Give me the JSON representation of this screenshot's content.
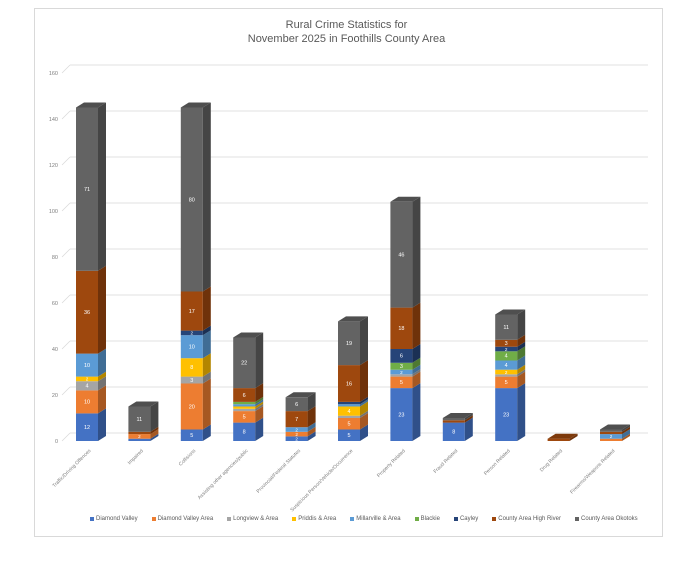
{
  "chart_data": {
    "type": "bar",
    "stacked": true,
    "style": "3d-stacked-column",
    "title": "Rural Crime Statistics for\nNovember 2025 in Foothills County Area",
    "title_lines": [
      "Rural Crime Statistics for",
      "November 2025 in Foothills County Area"
    ],
    "xlabel": "",
    "ylabel": "",
    "ylim": [
      0,
      160
    ],
    "yticks": [
      0,
      20,
      40,
      60,
      80,
      100,
      120,
      140,
      160
    ],
    "grid": true,
    "legend_position": "bottom",
    "categories": [
      "Traffic/Driving Offences",
      "Impaired",
      "Collisions",
      "Assisting other agencies/public",
      "Provincial/Federal Statutes",
      "Suspicious Person/Vehicle/Occurrence",
      "Property Related",
      "Fraud Related",
      "Person Related",
      "Drug Related",
      "Firearms/Weapons Related"
    ],
    "series": [
      {
        "name": "Diamond Valley",
        "color": "#4472C4",
        "values": [
          12,
          1,
          5,
          8,
          2,
          5,
          23,
          8,
          23,
          0,
          0
        ]
      },
      {
        "name": "Diamond Valley Area",
        "color": "#ED7D31",
        "values": [
          10,
          2,
          20,
          5,
          2,
          5,
          5,
          0,
          5,
          0,
          1
        ]
      },
      {
        "name": "Longview & Area",
        "color": "#A5A5A5",
        "values": [
          4,
          0,
          3,
          1,
          0,
          1,
          1,
          0,
          1,
          0,
          0
        ]
      },
      {
        "name": "Priddis & Area",
        "color": "#FFC000",
        "values": [
          2,
          0,
          8,
          1,
          0,
          4,
          0,
          0,
          2,
          0,
          0
        ]
      },
      {
        "name": "Millarville & Area",
        "color": "#5B9BD5",
        "values": [
          10,
          0,
          10,
          1,
          2,
          1,
          2,
          0,
          4,
          0,
          2
        ]
      },
      {
        "name": "Blackie",
        "color": "#70AD47",
        "values": [
          0,
          0,
          0,
          1,
          0,
          0,
          3,
          0,
          4,
          0,
          0
        ]
      },
      {
        "name": "Cayley",
        "color": "#264478",
        "values": [
          0,
          0,
          2,
          0,
          0,
          1,
          6,
          0,
          2,
          0,
          0
        ]
      },
      {
        "name": "County Area High River",
        "color": "#9E480E",
        "values": [
          36,
          1,
          17,
          6,
          7,
          16,
          18,
          1,
          3,
          1,
          1
        ]
      },
      {
        "name": "County Area Okotoks",
        "color": "#636363",
        "values": [
          71,
          11,
          80,
          22,
          6,
          19,
          46,
          1,
          11,
          0,
          1
        ]
      }
    ]
  }
}
